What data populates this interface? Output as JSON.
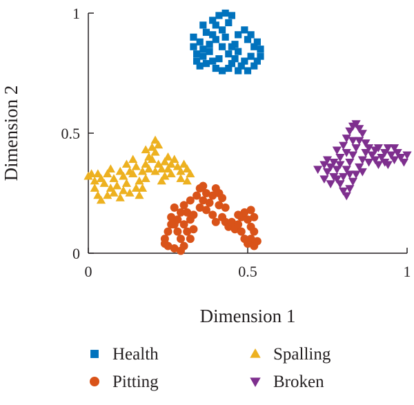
{
  "chart_data": {
    "type": "scatter",
    "xlabel": "Dimension 1",
    "ylabel": "Dimension 2",
    "xlim": [
      0,
      1
    ],
    "ylim": [
      0,
      1
    ],
    "xticks": [
      "0",
      "0.5",
      "1"
    ],
    "yticks": [
      "0",
      "0.5",
      "1"
    ],
    "grid": false,
    "legend_position": "bottom",
    "series": [
      {
        "name": "Health",
        "marker": "square",
        "color": "#0072bd",
        "points": [
          [
            0.36,
            0.95
          ],
          [
            0.39,
            0.97
          ],
          [
            0.41,
            0.99
          ],
          [
            0.43,
            1.0
          ],
          [
            0.45,
            0.99
          ],
          [
            0.44,
            0.96
          ],
          [
            0.42,
            0.93
          ],
          [
            0.4,
            0.95
          ],
          [
            0.37,
            0.92
          ],
          [
            0.35,
            0.88
          ],
          [
            0.33,
            0.9
          ],
          [
            0.33,
            0.86
          ],
          [
            0.34,
            0.83
          ],
          [
            0.34,
            0.8
          ],
          [
            0.35,
            0.78
          ],
          [
            0.37,
            0.79
          ],
          [
            0.36,
            0.82
          ],
          [
            0.38,
            0.84
          ],
          [
            0.39,
            0.8
          ],
          [
            0.4,
            0.77
          ],
          [
            0.42,
            0.76
          ],
          [
            0.44,
            0.77
          ],
          [
            0.45,
            0.79
          ],
          [
            0.46,
            0.81
          ],
          [
            0.47,
            0.84
          ],
          [
            0.46,
            0.87
          ],
          [
            0.47,
            0.91
          ],
          [
            0.49,
            0.93
          ],
          [
            0.51,
            0.91
          ],
          [
            0.53,
            0.88
          ],
          [
            0.54,
            0.85
          ],
          [
            0.54,
            0.82
          ],
          [
            0.53,
            0.8
          ],
          [
            0.52,
            0.78
          ],
          [
            0.51,
            0.82
          ],
          [
            0.49,
            0.8
          ],
          [
            0.48,
            0.78
          ],
          [
            0.5,
            0.76
          ],
          [
            0.47,
            0.76
          ],
          [
            0.44,
            0.83
          ],
          [
            0.42,
            0.86
          ],
          [
            0.4,
            0.89
          ],
          [
            0.38,
            0.87
          ],
          [
            0.43,
            0.9
          ],
          [
            0.45,
            0.86
          ],
          [
            0.41,
            0.81
          ],
          [
            0.36,
            0.85
          ],
          [
            0.39,
            0.91
          ],
          [
            0.52,
            0.86
          ],
          [
            0.5,
            0.89
          ]
        ]
      },
      {
        "name": "Pitting",
        "marker": "circle",
        "color": "#d95319",
        "points": [
          [
            0.26,
            0.12
          ],
          [
            0.25,
            0.09
          ],
          [
            0.24,
            0.06
          ],
          [
            0.25,
            0.03
          ],
          [
            0.27,
            0.02
          ],
          [
            0.29,
            0.01
          ],
          [
            0.3,
            0.03
          ],
          [
            0.29,
            0.06
          ],
          [
            0.28,
            0.09
          ],
          [
            0.27,
            0.12
          ],
          [
            0.26,
            0.15
          ],
          [
            0.28,
            0.14
          ],
          [
            0.3,
            0.12
          ],
          [
            0.31,
            0.09
          ],
          [
            0.32,
            0.06
          ],
          [
            0.33,
            0.1
          ],
          [
            0.32,
            0.14
          ],
          [
            0.31,
            0.17
          ],
          [
            0.3,
            0.2
          ],
          [
            0.32,
            0.22
          ],
          [
            0.34,
            0.24
          ],
          [
            0.35,
            0.27
          ],
          [
            0.36,
            0.28
          ],
          [
            0.37,
            0.25
          ],
          [
            0.36,
            0.22
          ],
          [
            0.35,
            0.19
          ],
          [
            0.37,
            0.18
          ],
          [
            0.38,
            0.21
          ],
          [
            0.39,
            0.24
          ],
          [
            0.4,
            0.27
          ],
          [
            0.41,
            0.25
          ],
          [
            0.42,
            0.23
          ],
          [
            0.41,
            0.2
          ],
          [
            0.43,
            0.19
          ],
          [
            0.42,
            0.15
          ],
          [
            0.4,
            0.13
          ],
          [
            0.39,
            0.16
          ],
          [
            0.29,
            0.17
          ],
          [
            0.27,
            0.19
          ],
          [
            0.33,
            0.16
          ],
          [
            0.43,
            0.13
          ],
          [
            0.44,
            0.11
          ],
          [
            0.45,
            0.13
          ],
          [
            0.46,
            0.1
          ],
          [
            0.47,
            0.12
          ],
          [
            0.48,
            0.15
          ],
          [
            0.49,
            0.17
          ],
          [
            0.5,
            0.14
          ],
          [
            0.51,
            0.11
          ],
          [
            0.52,
            0.09
          ],
          [
            0.51,
            0.06
          ],
          [
            0.5,
            0.04
          ],
          [
            0.52,
            0.03
          ],
          [
            0.53,
            0.05
          ],
          [
            0.52,
            0.15
          ],
          [
            0.51,
            0.18
          ],
          [
            0.48,
            0.09
          ],
          [
            0.49,
            0.06
          ],
          [
            0.47,
            0.16
          ],
          [
            0.24,
            0.04
          ]
        ]
      },
      {
        "name": "Spalling",
        "marker": "triangle-up",
        "color": "#edb120",
        "points": [
          [
            0.0,
            0.32
          ],
          [
            0.02,
            0.3
          ],
          [
            0.03,
            0.33
          ],
          [
            0.02,
            0.27
          ],
          [
            0.03,
            0.24
          ],
          [
            0.04,
            0.22
          ],
          [
            0.06,
            0.24
          ],
          [
            0.07,
            0.27
          ],
          [
            0.05,
            0.29
          ],
          [
            0.04,
            0.31
          ],
          [
            0.06,
            0.33
          ],
          [
            0.08,
            0.31
          ],
          [
            0.09,
            0.28
          ],
          [
            0.08,
            0.25
          ],
          [
            0.1,
            0.23
          ],
          [
            0.11,
            0.26
          ],
          [
            0.12,
            0.29
          ],
          [
            0.11,
            0.32
          ],
          [
            0.13,
            0.34
          ],
          [
            0.12,
            0.37
          ],
          [
            0.14,
            0.39
          ],
          [
            0.15,
            0.36
          ],
          [
            0.14,
            0.33
          ],
          [
            0.16,
            0.3
          ],
          [
            0.17,
            0.27
          ],
          [
            0.16,
            0.24
          ],
          [
            0.15,
            0.27
          ],
          [
            0.13,
            0.25
          ],
          [
            0.17,
            0.34
          ],
          [
            0.18,
            0.37
          ],
          [
            0.19,
            0.4
          ],
          [
            0.18,
            0.43
          ],
          [
            0.2,
            0.44
          ],
          [
            0.21,
            0.47
          ],
          [
            0.22,
            0.45
          ],
          [
            0.21,
            0.42
          ],
          [
            0.2,
            0.39
          ],
          [
            0.22,
            0.37
          ],
          [
            0.21,
            0.34
          ],
          [
            0.23,
            0.35
          ],
          [
            0.24,
            0.38
          ],
          [
            0.25,
            0.35
          ],
          [
            0.26,
            0.37
          ],
          [
            0.27,
            0.39
          ],
          [
            0.28,
            0.36
          ],
          [
            0.29,
            0.34
          ],
          [
            0.3,
            0.37
          ],
          [
            0.31,
            0.35
          ],
          [
            0.32,
            0.33
          ],
          [
            0.31,
            0.3
          ],
          [
            0.29,
            0.31
          ],
          [
            0.26,
            0.33
          ],
          [
            0.24,
            0.32
          ],
          [
            0.23,
            0.3
          ],
          [
            0.1,
            0.34
          ],
          [
            0.07,
            0.35
          ],
          [
            0.01,
            0.33
          ],
          [
            0.18,
            0.31
          ],
          [
            0.25,
            0.4
          ],
          [
            0.19,
            0.35
          ]
        ]
      },
      {
        "name": "Broken",
        "marker": "triangle-down",
        "color": "#7e2f8e",
        "points": [
          [
            0.72,
            0.35
          ],
          [
            0.74,
            0.37
          ],
          [
            0.75,
            0.34
          ],
          [
            0.74,
            0.31
          ],
          [
            0.76,
            0.29
          ],
          [
            0.77,
            0.32
          ],
          [
            0.78,
            0.35
          ],
          [
            0.77,
            0.38
          ],
          [
            0.79,
            0.4
          ],
          [
            0.78,
            0.43
          ],
          [
            0.8,
            0.45
          ],
          [
            0.81,
            0.48
          ],
          [
            0.82,
            0.51
          ],
          [
            0.83,
            0.53
          ],
          [
            0.84,
            0.54
          ],
          [
            0.85,
            0.52
          ],
          [
            0.86,
            0.5
          ],
          [
            0.85,
            0.47
          ],
          [
            0.84,
            0.44
          ],
          [
            0.83,
            0.41
          ],
          [
            0.82,
            0.38
          ],
          [
            0.81,
            0.35
          ],
          [
            0.8,
            0.32
          ],
          [
            0.79,
            0.29
          ],
          [
            0.8,
            0.26
          ],
          [
            0.81,
            0.24
          ],
          [
            0.82,
            0.27
          ],
          [
            0.83,
            0.3
          ],
          [
            0.84,
            0.33
          ],
          [
            0.85,
            0.36
          ],
          [
            0.86,
            0.39
          ],
          [
            0.87,
            0.42
          ],
          [
            0.88,
            0.44
          ],
          [
            0.89,
            0.41
          ],
          [
            0.9,
            0.39
          ],
          [
            0.91,
            0.37
          ],
          [
            0.92,
            0.4
          ],
          [
            0.93,
            0.42
          ],
          [
            0.94,
            0.44
          ],
          [
            0.95,
            0.41
          ],
          [
            0.96,
            0.39
          ],
          [
            0.97,
            0.42
          ],
          [
            0.98,
            0.4
          ],
          [
            0.99,
            0.38
          ],
          [
            1.0,
            0.41
          ],
          [
            0.96,
            0.44
          ],
          [
            0.93,
            0.38
          ],
          [
            0.9,
            0.43
          ],
          [
            0.87,
            0.46
          ],
          [
            0.88,
            0.38
          ],
          [
            0.76,
            0.36
          ],
          [
            0.78,
            0.31
          ],
          [
            0.82,
            0.33
          ],
          [
            0.79,
            0.37
          ],
          [
            0.91,
            0.44
          ],
          [
            0.94,
            0.37
          ],
          [
            0.86,
            0.34
          ],
          [
            0.83,
            0.47
          ],
          [
            0.75,
            0.39
          ],
          [
            0.81,
            0.42
          ]
        ]
      }
    ]
  }
}
